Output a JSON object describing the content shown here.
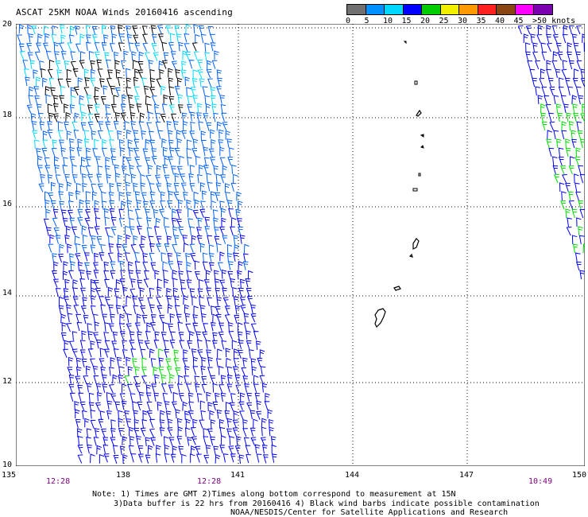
{
  "title": "ASCAT 25KM NOAA Winds 20160416 ascending",
  "legend": {
    "swatches": [
      {
        "color": "#707070",
        "label": "0"
      },
      {
        "color": "#0090ff",
        "label": "5"
      },
      {
        "color": "#00d8ff",
        "label": "10"
      },
      {
        "color": "#0000ff",
        "label": "15"
      },
      {
        "color": "#00cc00",
        "label": "20"
      },
      {
        "color": "#f0f000",
        "label": "25"
      },
      {
        "color": "#ff9900",
        "label": "30"
      },
      {
        "color": "#ff2020",
        "label": "35"
      },
      {
        "color": "#8b4513",
        "label": "40"
      },
      {
        "color": "#ff00ff",
        "label": "45"
      },
      {
        "color": "#7a00b0",
        "label": ">50 knots"
      }
    ]
  },
  "axes": {
    "lat_labels": [
      "20",
      "18",
      "16",
      "14",
      "12",
      "10"
    ],
    "lon_labels": [
      "135",
      "138",
      "141",
      "144",
      "147",
      "150"
    ]
  },
  "pass_times": [
    "12:28",
    "12:28",
    "10:49"
  ],
  "notes": {
    "line1": "Note: 1) Times are GMT 2)Times along bottom correspond to measurement at 15N",
    "line2": "3)Data buffer is 22 hrs from 20160416 4) Black wind barbs indicate possible contamination",
    "line3": "NOAA/NESDIS/Center for Satellite Applications and Research"
  },
  "colors": {
    "blue": "#0000ff",
    "mid_blue": "#0060ff",
    "cyan": "#00d8ff",
    "green": "#00dd00",
    "contaminated": "#000000",
    "time_label": "#7b007b"
  }
}
